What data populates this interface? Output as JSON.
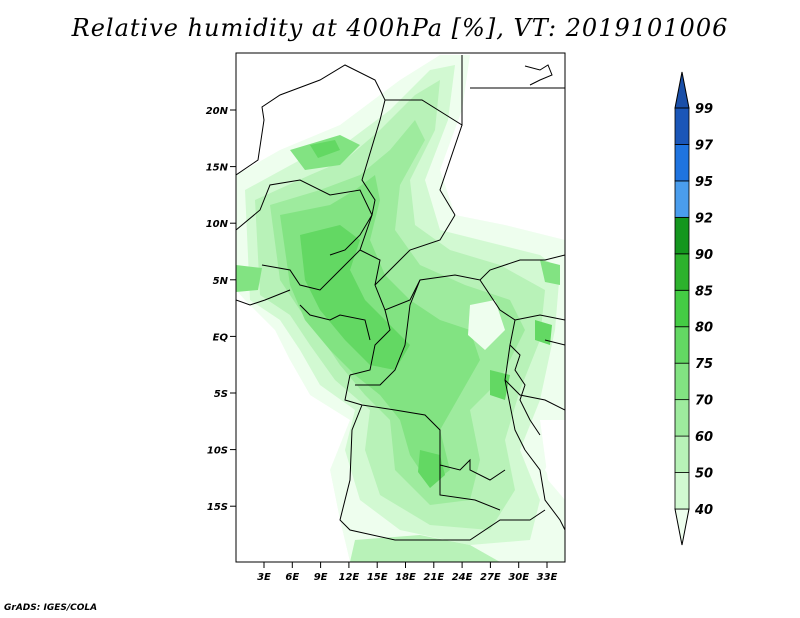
{
  "title": "Relative humidity at 400hPa [%], VT: 2019101006",
  "credit": "GrADS: IGES/COLA",
  "map": {
    "lat_labels": [
      "20N",
      "15N",
      "10N",
      "5N",
      "EQ",
      "5S",
      "10S",
      "15S"
    ],
    "lon_labels": [
      "3E",
      "6E",
      "9E",
      "12E",
      "15E",
      "18E",
      "21E",
      "24E",
      "27E",
      "30E",
      "33E"
    ]
  },
  "colorbar": {
    "levels": [
      "40",
      "50",
      "60",
      "70",
      "75",
      "80",
      "85",
      "90",
      "92",
      "95",
      "97",
      "99"
    ],
    "colors": [
      "#eefeee",
      "#d2f9d2",
      "#b8f2b8",
      "#9eeb9e",
      "#82e382",
      "#63d863",
      "#44cc44",
      "#2db22d",
      "#14961e",
      "#4a9ded",
      "#1f74e0",
      "#1a56b8",
      "#1a4fa8"
    ]
  }
}
